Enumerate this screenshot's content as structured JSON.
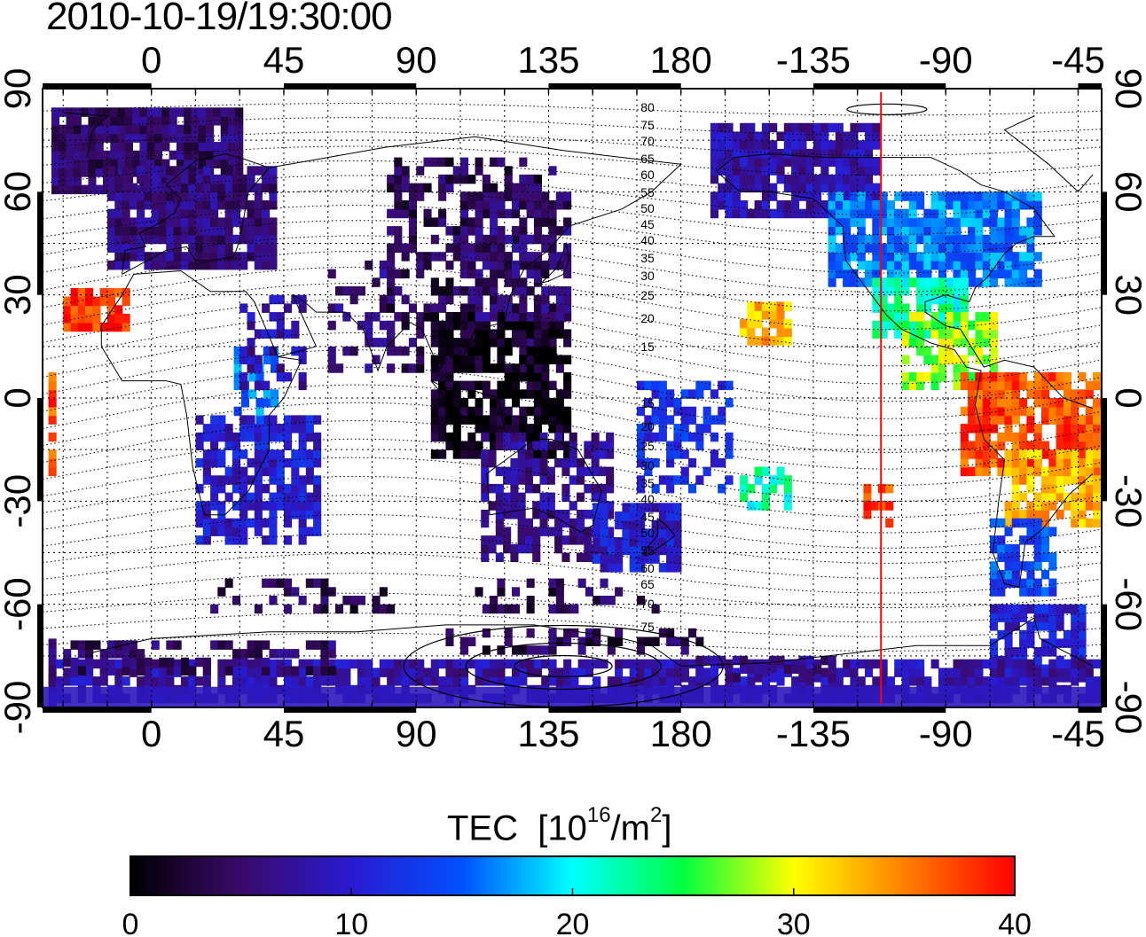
{
  "title": "2010-10-19/19:30:00",
  "colorbar": {
    "label_main": "TEC",
    "label_unit_open": "[10",
    "label_unit_exp": "16",
    "label_unit_mid": "/m",
    "label_unit_sq": "2",
    "label_unit_close": "]",
    "ticks": [
      "0",
      "10",
      "20",
      "30",
      "40"
    ],
    "range": [
      0,
      40
    ],
    "colors": [
      "#000000",
      "#3a0a6a",
      "#2a1ad0",
      "#0050ff",
      "#00ffff",
      "#00ff40",
      "#ffff00",
      "#ff8000",
      "#ff0000"
    ]
  },
  "map": {
    "lon_top_labels": [
      "0",
      "45",
      "90",
      "135",
      "180",
      "-135",
      "-90",
      "-45"
    ],
    "lon_bottom_labels": [
      "0",
      "45",
      "90",
      "135",
      "180",
      "-135",
      "-90",
      "-45"
    ],
    "lat_left_labels": [
      "90",
      "60",
      "30",
      "0",
      "-30",
      "-60",
      "-90"
    ],
    "lat_right_labels": [
      "90",
      "60",
      "30",
      "0",
      "-30",
      "-60",
      "-90"
    ],
    "contour_labels": [
      "80",
      "75",
      "70",
      "65",
      "60",
      "55",
      "50",
      "45",
      "40",
      "35",
      "30",
      "25",
      "20",
      "15",
      "15",
      "20",
      "25",
      "30",
      "35",
      "40",
      "45",
      "50",
      "55",
      "60",
      "65",
      "70",
      "75"
    ],
    "terminator_lon": -112,
    "terminator_color": "#ff0000"
  }
}
